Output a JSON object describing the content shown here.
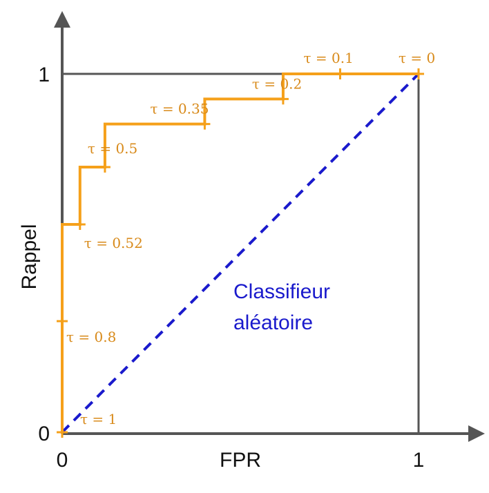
{
  "chart_data": {
    "type": "line",
    "xlabel": "FPR",
    "ylabel": "Rappel",
    "xlim": [
      0,
      1
    ],
    "ylim": [
      0,
      1
    ],
    "x_ticks": [
      "0",
      "1"
    ],
    "y_ticks": [
      "0",
      "1"
    ],
    "grid": false,
    "series": [
      {
        "color": "#f5a01a",
        "step": true,
        "points": [
          {
            "x": 0.0,
            "y": 0.0,
            "label": "τ = 1"
          },
          {
            "x": 0.0,
            "y": 0.31,
            "label": "τ = 0.8"
          },
          {
            "x": 0.05,
            "y": 0.58,
            "label": "τ = 0.52"
          },
          {
            "x": 0.12,
            "y": 0.74,
            "label": "τ = 0.5"
          },
          {
            "x": 0.4,
            "y": 0.86,
            "label": "τ = 0.35"
          },
          {
            "x": 0.62,
            "y": 0.93,
            "label": "τ = 0.2"
          },
          {
            "x": 0.78,
            "y": 1.0,
            "label": "τ = 0.1"
          },
          {
            "x": 1.0,
            "y": 1.0,
            "label": "τ = 0"
          }
        ]
      },
      {
        "name": "Classifieur aléatoire",
        "color": "#1a1acc",
        "dashed": true,
        "points": [
          {
            "x": 0,
            "y": 0
          },
          {
            "x": 1,
            "y": 1
          }
        ]
      }
    ],
    "annotations": [
      "Classifieur",
      "aléatoire"
    ],
    "colors": {
      "roc": "#f5a01a",
      "random": "#1a1acc",
      "axes": "#555555",
      "label": "#d88a1a"
    }
  }
}
